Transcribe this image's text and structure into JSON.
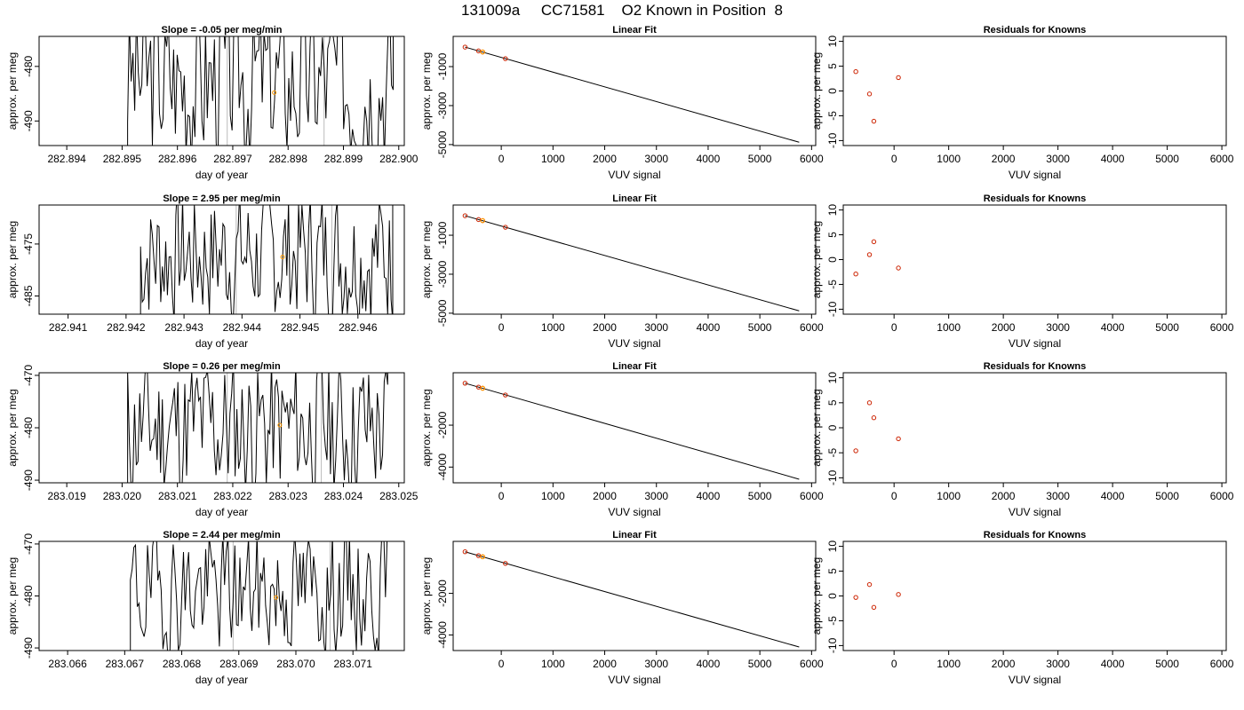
{
  "title": "131009a     CC71581    O2 Known in Position  8",
  "chart_data": [
    {
      "id": "ts1",
      "type": "line",
      "title": "Slope =  -0.05  per meg/min",
      "xlabel": "day of year",
      "ylabel": "approx. per meg",
      "xlim": [
        282.8935,
        282.9001
      ],
      "ylim": [
        -494.5,
        -474.5
      ],
      "xticks": [
        282.894,
        282.895,
        282.896,
        282.897,
        282.898,
        282.899,
        282.9
      ],
      "xtick_labels": [
        "282.894",
        "282.895",
        "282.896",
        "282.897",
        "282.898",
        "282.899",
        "282.900"
      ],
      "yticks": [
        -490,
        -480
      ],
      "ytick_labels": [
        "-490",
        "-480"
      ],
      "vlines": [
        282.8969,
        282.89865
      ],
      "marker": {
        "x": 282.89775,
        "y": -484.8
      },
      "noise": {
        "x_start": 282.8951,
        "x_end": 282.8999,
        "center": -482,
        "amplitude": 13,
        "seed": 3
      }
    },
    {
      "id": "fit1",
      "type": "scatter",
      "title": "Linear Fit",
      "xlabel": "VUV signal",
      "ylabel": "approx. per meg",
      "xlim": [
        -930,
        6080
      ],
      "ylim": [
        -5050,
        550
      ],
      "xticks": [
        0,
        1000,
        2000,
        3000,
        4000,
        5000,
        6000
      ],
      "xtick_labels": [
        "0",
        "1000",
        "2000",
        "3000",
        "4000",
        "5000",
        "6000"
      ],
      "yticks": [
        -5000,
        -3000,
        -1000
      ],
      "ytick_labels": [
        "-5000",
        "-3000",
        "-1000"
      ],
      "line": {
        "x": [
          -700,
          5760
        ],
        "y": [
          0,
          -4880
        ]
      },
      "points": [
        {
          "x": -700,
          "y": 0
        },
        {
          "x": -440,
          "y": -195
        },
        {
          "x": -360,
          "y": -250
        },
        {
          "x": 80,
          "y": -590
        }
      ],
      "highlight": {
        "x": -360,
        "y": -250
      }
    },
    {
      "id": "res1",
      "type": "scatter",
      "title": "Residuals for Knowns",
      "xlabel": "VUV signal",
      "ylabel": "approx. per meg",
      "xlim": [
        -930,
        6080
      ],
      "ylim": [
        -11,
        11
      ],
      "xticks": [
        0,
        1000,
        2000,
        3000,
        4000,
        5000,
        6000
      ],
      "xtick_labels": [
        "0",
        "1000",
        "2000",
        "3000",
        "4000",
        "5000",
        "6000"
      ],
      "yticks": [
        -10,
        -5,
        0,
        5,
        10
      ],
      "ytick_labels": [
        "-10",
        "-5",
        "0",
        "5",
        "10"
      ],
      "points": [
        {
          "x": -700,
          "y": 3.9
        },
        {
          "x": -450,
          "y": -0.6
        },
        {
          "x": -370,
          "y": -6.1
        },
        {
          "x": 80,
          "y": 2.7
        }
      ]
    },
    {
      "id": "ts2",
      "type": "line",
      "title": "Slope =  2.95  per meg/min",
      "xlabel": "day of year",
      "ylabel": "approx. per meg",
      "xlim": [
        282.9405,
        282.9468
      ],
      "ylim": [
        -488.5,
        -467.5
      ],
      "xticks": [
        282.941,
        282.942,
        282.943,
        282.944,
        282.945,
        282.946
      ],
      "xtick_labels": [
        "282.941",
        "282.942",
        "282.943",
        "282.944",
        "282.945",
        "282.946"
      ],
      "yticks": [
        -485,
        -475
      ],
      "ytick_labels": [
        "-485",
        "-475"
      ],
      "vlines": [
        282.9439,
        282.94555
      ],
      "marker": {
        "x": 282.9447,
        "y": -477.5
      },
      "noise": {
        "x_start": 282.94225,
        "x_end": 282.9466,
        "center": -477,
        "amplitude": 11,
        "seed": 7
      }
    },
    {
      "id": "fit2",
      "type": "scatter",
      "title": "Linear Fit",
      "xlabel": "VUV signal",
      "ylabel": "approx. per meg",
      "xlim": [
        -930,
        6080
      ],
      "ylim": [
        -5050,
        550
      ],
      "xticks": [
        0,
        1000,
        2000,
        3000,
        4000,
        5000,
        6000
      ],
      "xtick_labels": [
        "0",
        "1000",
        "2000",
        "3000",
        "4000",
        "5000",
        "6000"
      ],
      "yticks": [
        -5000,
        -3000,
        -1000
      ],
      "ytick_labels": [
        "-5000",
        "-3000",
        "-1000"
      ],
      "line": {
        "x": [
          -700,
          5760
        ],
        "y": [
          0,
          -4880
        ]
      },
      "points": [
        {
          "x": -700,
          "y": 0
        },
        {
          "x": -440,
          "y": -195
        },
        {
          "x": -360,
          "y": -250
        },
        {
          "x": 80,
          "y": -590
        }
      ],
      "highlight": {
        "x": -360,
        "y": -250
      }
    },
    {
      "id": "res2",
      "type": "scatter",
      "title": "Residuals for Knowns",
      "xlabel": "VUV signal",
      "ylabel": "approx. per meg",
      "xlim": [
        -930,
        6080
      ],
      "ylim": [
        -11,
        11
      ],
      "xticks": [
        0,
        1000,
        2000,
        3000,
        4000,
        5000,
        6000
      ],
      "xtick_labels": [
        "0",
        "1000",
        "2000",
        "3000",
        "4000",
        "5000",
        "6000"
      ],
      "yticks": [
        -10,
        -5,
        0,
        5,
        10
      ],
      "ytick_labels": [
        "-10",
        "-5",
        "0",
        "5",
        "10"
      ],
      "points": [
        {
          "x": -700,
          "y": -2.9
        },
        {
          "x": -450,
          "y": 1.0
        },
        {
          "x": -370,
          "y": 3.6
        },
        {
          "x": 80,
          "y": -1.7
        }
      ]
    },
    {
      "id": "ts3",
      "type": "line",
      "title": "Slope =  0.26  per meg/min",
      "xlabel": "day of year",
      "ylabel": "approx. per meg",
      "xlim": [
        283.0185,
        283.0251
      ],
      "ylim": [
        -490.5,
        -469.5
      ],
      "xticks": [
        283.019,
        283.02,
        283.021,
        283.022,
        283.023,
        283.024,
        283.025
      ],
      "xtick_labels": [
        "283.019",
        "283.020",
        "283.021",
        "283.022",
        "283.023",
        "283.024",
        "283.025"
      ],
      "yticks": [
        -490,
        -480,
        -470
      ],
      "ytick_labels": [
        "-490",
        "-480",
        "-470"
      ],
      "vlines": [
        283.0219,
        283.0236
      ],
      "marker": {
        "x": 283.02285,
        "y": -479.5
      },
      "noise": {
        "x_start": 283.0201,
        "x_end": 283.0248,
        "center": -480,
        "amplitude": 12,
        "seed": 11
      }
    },
    {
      "id": "fit3",
      "type": "scatter",
      "title": "Linear Fit",
      "xlabel": "VUV signal",
      "ylabel": "approx. per meg",
      "xlim": [
        -930,
        6080
      ],
      "ylim": [
        -4750,
        500
      ],
      "xticks": [
        0,
        1000,
        2000,
        3000,
        4000,
        5000,
        6000
      ],
      "xtick_labels": [
        "0",
        "1000",
        "2000",
        "3000",
        "4000",
        "5000",
        "6000"
      ],
      "yticks": [
        -4000,
        -2000
      ],
      "ytick_labels": [
        "-4000",
        "-2000"
      ],
      "line": {
        "x": [
          -700,
          5760
        ],
        "y": [
          0,
          -4580
        ]
      },
      "points": [
        {
          "x": -700,
          "y": 0
        },
        {
          "x": -440,
          "y": -185
        },
        {
          "x": -360,
          "y": -240
        },
        {
          "x": 80,
          "y": -560
        }
      ],
      "highlight": {
        "x": -360,
        "y": -240
      }
    },
    {
      "id": "res3",
      "type": "scatter",
      "title": "Residuals for Knowns",
      "xlabel": "VUV signal",
      "ylabel": "approx. per meg",
      "xlim": [
        -930,
        6080
      ],
      "ylim": [
        -11,
        11
      ],
      "xticks": [
        0,
        1000,
        2000,
        3000,
        4000,
        5000,
        6000
      ],
      "xtick_labels": [
        "0",
        "1000",
        "2000",
        "3000",
        "4000",
        "5000",
        "6000"
      ],
      "yticks": [
        -10,
        -5,
        0,
        5,
        10
      ],
      "ytick_labels": [
        "-10",
        "-5",
        "0",
        "5",
        "10"
      ],
      "points": [
        {
          "x": -700,
          "y": -4.6
        },
        {
          "x": -450,
          "y": 5.0
        },
        {
          "x": -370,
          "y": 2.0
        },
        {
          "x": 80,
          "y": -2.2
        }
      ]
    },
    {
      "id": "ts4",
      "type": "line",
      "title": "Slope =  2.44  per meg/min",
      "xlabel": "day of year",
      "ylabel": "approx. per meg",
      "xlim": [
        283.0655,
        283.0719
      ],
      "ylim": [
        -490.5,
        -469.5
      ],
      "xticks": [
        283.066,
        283.067,
        283.068,
        283.069,
        283.07,
        283.071
      ],
      "xtick_labels": [
        "283.066",
        "283.067",
        "283.068",
        "283.069",
        "283.070",
        "283.071"
      ],
      "yticks": [
        -490,
        -480,
        -470
      ],
      "ytick_labels": [
        "-490",
        "-480",
        "-470"
      ],
      "vlines": [
        283.0689,
        283.0706
      ],
      "marker": {
        "x": 283.06965,
        "y": -480.3
      },
      "noise": {
        "x_start": 283.0671,
        "x_end": 283.0716,
        "center": -479,
        "amplitude": 10,
        "seed": 19
      }
    },
    {
      "id": "fit4",
      "type": "scatter",
      "title": "Linear Fit",
      "xlabel": "VUV signal",
      "ylabel": "approx. per meg",
      "xlim": [
        -930,
        6080
      ],
      "ylim": [
        -4750,
        500
      ],
      "xticks": [
        0,
        1000,
        2000,
        3000,
        4000,
        5000,
        6000
      ],
      "xtick_labels": [
        "0",
        "1000",
        "2000",
        "3000",
        "4000",
        "5000",
        "6000"
      ],
      "yticks": [
        -4000,
        -2000
      ],
      "ytick_labels": [
        "-4000",
        "-2000"
      ],
      "line": {
        "x": [
          -700,
          5760
        ],
        "y": [
          0,
          -4580
        ]
      },
      "points": [
        {
          "x": -700,
          "y": 0
        },
        {
          "x": -440,
          "y": -185
        },
        {
          "x": -360,
          "y": -240
        },
        {
          "x": 80,
          "y": -560
        }
      ],
      "highlight": {
        "x": -360,
        "y": -240
      }
    },
    {
      "id": "res4",
      "type": "scatter",
      "title": "Residuals for Knowns",
      "xlabel": "VUV signal",
      "ylabel": "approx. per meg",
      "xlim": [
        -930,
        6080
      ],
      "ylim": [
        -11,
        11
      ],
      "xticks": [
        0,
        1000,
        2000,
        3000,
        4000,
        5000,
        6000
      ],
      "xtick_labels": [
        "0",
        "1000",
        "2000",
        "3000",
        "4000",
        "5000",
        "6000"
      ],
      "yticks": [
        -10,
        -5,
        0,
        5,
        10
      ],
      "ytick_labels": [
        "-10",
        "-5",
        "0",
        "5",
        "10"
      ],
      "points": [
        {
          "x": -700,
          "y": -0.3
        },
        {
          "x": -450,
          "y": 2.3
        },
        {
          "x": -370,
          "y": -2.3
        },
        {
          "x": 80,
          "y": 0.3
        }
      ]
    }
  ],
  "colors": {
    "line": "#000000",
    "point": "#cc2200",
    "highlight": "#ff9900",
    "vline": "#bbbbbb",
    "axis": "#000000"
  }
}
